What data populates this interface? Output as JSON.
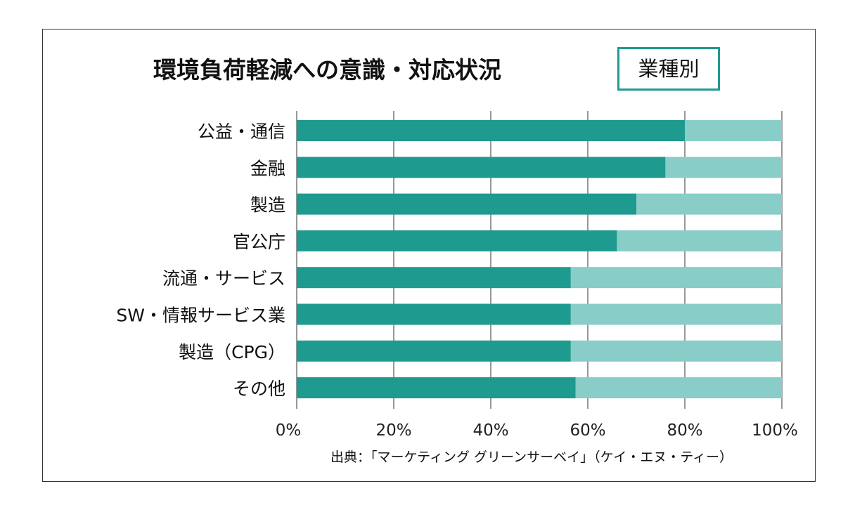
{
  "title": "環境負荷軽減への意識・対応状況",
  "badge": "業種別",
  "source": "出典：「マーケティング グリーンサーベイ」（ケイ・エヌ・ティー）",
  "colors": {
    "primary": "#1f9a8f",
    "secondary": "#88cdc7",
    "grid": "#555555",
    "badge_border": "#1f9a8f"
  },
  "chart_data": {
    "type": "bar",
    "orientation": "horizontal",
    "stacked": true,
    "title": "環境負荷軽減への意識・対応状況",
    "subtitle": "業種別",
    "categories": [
      "公益・通信",
      "金融",
      "製造",
      "官公庁",
      "流通・サービス",
      "SW・情報サービス業",
      "製造（CPG）",
      "その他"
    ],
    "series": [
      {
        "name": "primary",
        "values": [
          80,
          76,
          70,
          66,
          56.5,
          56.5,
          56.5,
          57.5
        ]
      },
      {
        "name": "remainder",
        "values": [
          20,
          24,
          30,
          34,
          43.5,
          43.5,
          43.5,
          42.5
        ]
      }
    ],
    "xlim": [
      0,
      100
    ],
    "xticks": [
      "0%",
      "20%",
      "40%",
      "60%",
      "80%",
      "100%"
    ],
    "grid": true,
    "legend": "none"
  }
}
